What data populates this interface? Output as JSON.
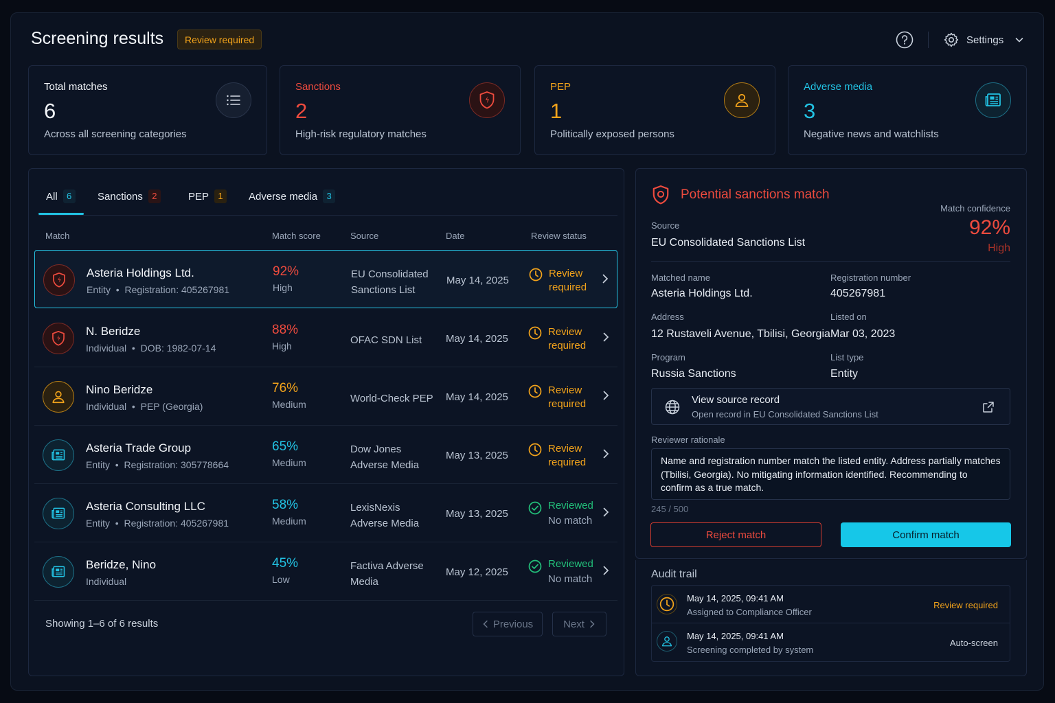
{
  "header": {
    "title": "Screening results",
    "status_badge": "Review required",
    "settings_label": "Settings"
  },
  "stats": [
    {
      "label": "Total matches",
      "value": "6",
      "sub": "Across all screening categories",
      "icon": "list-icon",
      "color": "#e6ebf2"
    },
    {
      "label": "Sanctions",
      "value": "2",
      "sub": "High-risk regulatory matches",
      "icon": "shield-icon",
      "color": "#ee4b3e"
    },
    {
      "label": "PEP",
      "value": "1",
      "sub": "Politically exposed persons",
      "icon": "person-icon",
      "color": "#f2a31b"
    },
    {
      "label": "Adverse media",
      "value": "3",
      "sub": "Negative news and watchlists",
      "icon": "newspaper-icon",
      "color": "#22c2e3"
    }
  ],
  "tabs": [
    {
      "label": "All",
      "count": "6"
    },
    {
      "label": "Sanctions",
      "count": "2"
    },
    {
      "label": "PEP",
      "count": "1"
    },
    {
      "label": "Adverse media",
      "count": "3"
    }
  ],
  "table": {
    "columns": [
      "Match",
      "Match score",
      "Source",
      "Date",
      "Review status"
    ],
    "rows": [
      {
        "name": "Asteria Holdings Ltd.",
        "type": "Entity",
        "detail": "Registration: 405267981",
        "score": "92%",
        "level": "High",
        "source": "EU Consolidated Sanctions List",
        "date": "May 14, 2025",
        "status": "Review required",
        "status_sub": "",
        "category": "sanctions"
      },
      {
        "name": "N. Beridze",
        "type": "Individual",
        "detail": "DOB: 1982-07-14",
        "score": "88%",
        "level": "High",
        "source": "OFAC SDN List",
        "date": "May 14, 2025",
        "status": "Review required",
        "status_sub": "",
        "category": "sanctions"
      },
      {
        "name": "Nino Beridze",
        "type": "Individual",
        "detail": "PEP (Georgia)",
        "score": "76%",
        "level": "Medium",
        "source": "World-Check PEP",
        "date": "May 14, 2025",
        "status": "Review required",
        "status_sub": "",
        "category": "pep"
      },
      {
        "name": "Asteria Trade Group",
        "type": "Entity",
        "detail": "Registration: 305778664",
        "score": "65%",
        "level": "Medium",
        "source": "Dow Jones Adverse Media",
        "date": "May 13, 2025",
        "status": "Review required",
        "status_sub": "",
        "category": "media"
      },
      {
        "name": "Asteria Consulting LLC",
        "type": "Entity",
        "detail": "Registration: 405267981",
        "score": "58%",
        "level": "Medium",
        "source": "LexisNexis Adverse Media",
        "date": "May 13, 2025",
        "status": "Reviewed",
        "status_sub": "No match",
        "category": "media"
      },
      {
        "name": "Beridze, Nino",
        "type": "Individual",
        "detail": "",
        "score": "45%",
        "level": "Low",
        "source": "Factiva Adverse Media",
        "date": "May 12, 2025",
        "status": "Reviewed",
        "status_sub": "No match",
        "category": "media"
      }
    ],
    "footer": "Showing 1–6 of 6 results",
    "prev_label": "Previous",
    "next_label": "Next"
  },
  "detail": {
    "title": "Potential sanctions match",
    "source_label": "Source",
    "source_value": "EU Consolidated Sanctions List",
    "confidence_label": "Match confidence",
    "confidence_value": "92%",
    "confidence_level": "High",
    "fields": [
      {
        "label": "Matched name",
        "value": "Asteria Holdings Ltd."
      },
      {
        "label": "Registration number",
        "value": "405267981"
      },
      {
        "label": "Address",
        "value": "12 Rustaveli Avenue, Tbilisi, Georgia"
      },
      {
        "label": "Listed on",
        "value": "Mar 03, 2023"
      },
      {
        "label": "Program",
        "value": "Russia Sanctions"
      },
      {
        "label": "List type",
        "value": "Entity"
      }
    ],
    "source_record_title": "View source record",
    "source_record_sub": "Open record in EU Consolidated Sanctions List",
    "rationale_label": "Reviewer rationale",
    "rationale_text": "Name and registration number match the listed entity. Address partially matches (Tbilisi, Georgia). No mitigating information identified. Recommending to confirm as a true match.",
    "char_count": "245 / 500",
    "reject_label": "Reject match",
    "confirm_label": "Confirm match"
  },
  "audit": {
    "title": "Audit trail",
    "entries": [
      {
        "time": "May 14, 2025, 09:41 AM",
        "desc": "Assigned to Compliance Officer",
        "tag": "Review required"
      },
      {
        "time": "May 14, 2025, 09:41 AM",
        "desc": "Screening completed by system",
        "tag": "Auto-screen"
      }
    ]
  },
  "colors": {
    "sanctions": "#ee4b3e",
    "pep": "#f2a31b",
    "media": "#22c2e3",
    "reviewed": "#22c07a",
    "accent": "#16c7e8"
  }
}
